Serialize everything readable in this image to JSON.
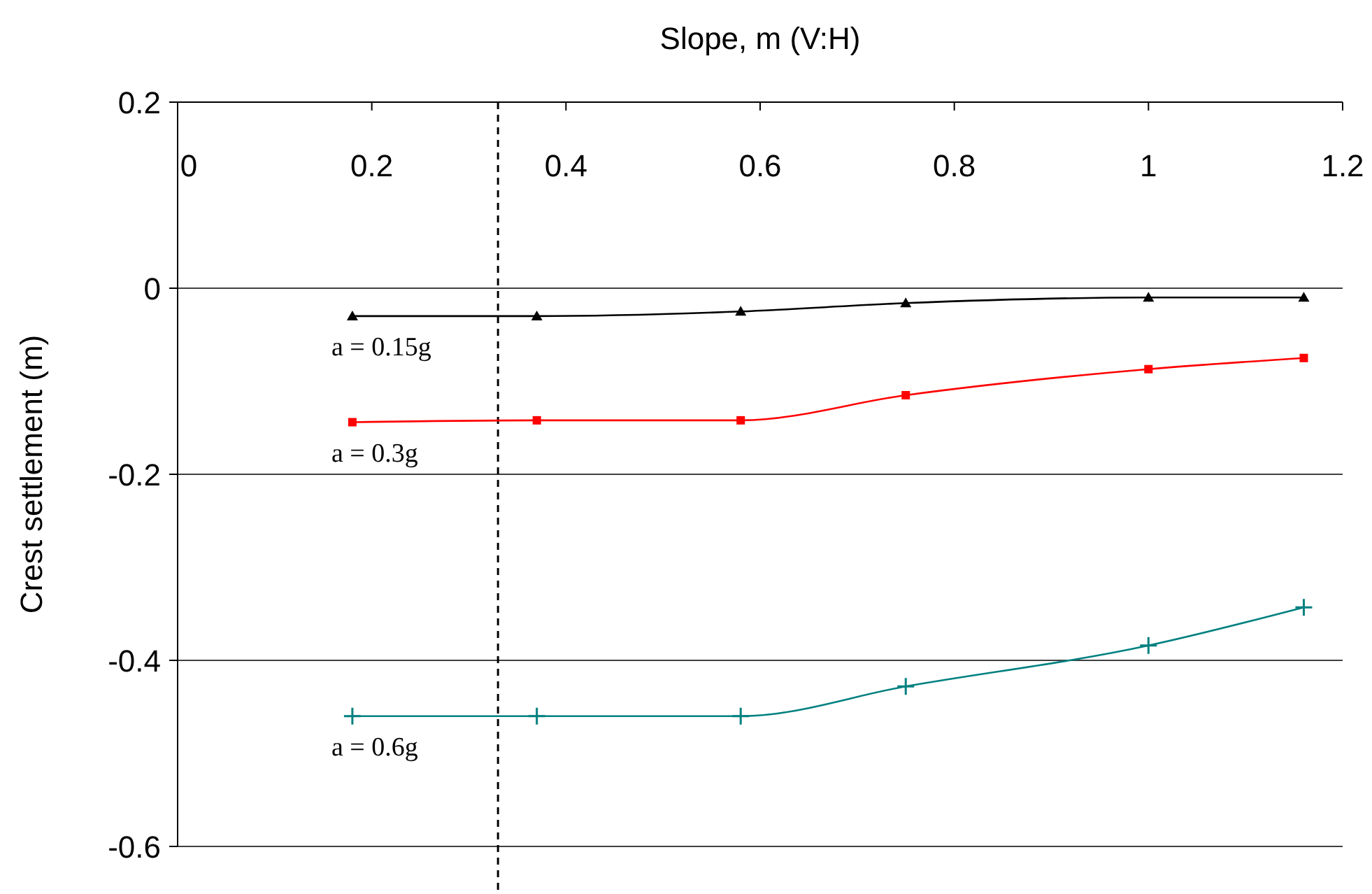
{
  "chart_data": {
    "type": "line",
    "xlabel": "Slope, m  (V:H)",
    "ylabel": "Crest settlement (m)",
    "xlim": [
      0,
      1.2
    ],
    "xticks": [
      0,
      0.2,
      0.4,
      0.6,
      0.8,
      1,
      1.2
    ],
    "ylim": [
      -0.6,
      0.2
    ],
    "yticks": [
      -0.6,
      -0.4,
      -0.2,
      0,
      0.2
    ],
    "grid": "y",
    "series": [
      {
        "name": "a = 0.15g",
        "color": "#000000",
        "marker": "triangle",
        "x": [
          0.18,
          0.37,
          0.58,
          0.75,
          1.0,
          1.16
        ],
        "values": [
          -0.03,
          -0.03,
          -0.025,
          -0.016,
          -0.01,
          -0.01
        ]
      },
      {
        "name": "a = 0.3g",
        "color": "#ff0000",
        "marker": "square",
        "x": [
          0.18,
          0.37,
          0.58,
          0.75,
          1.0,
          1.16
        ],
        "values": [
          -0.144,
          -0.142,
          -0.142,
          -0.115,
          -0.087,
          -0.075
        ]
      },
      {
        "name": "a = 0.6g",
        "color": "#008080",
        "marker": "cross",
        "x": [
          0.18,
          0.37,
          0.58,
          0.75,
          1.0,
          1.16
        ],
        "values": [
          -0.46,
          -0.46,
          -0.46,
          -0.428,
          -0.384,
          -0.343
        ]
      }
    ],
    "ref_lines": [
      {
        "axis": "x",
        "value": 0.33,
        "color": "#000000",
        "line_style": "dashed"
      }
    ]
  }
}
